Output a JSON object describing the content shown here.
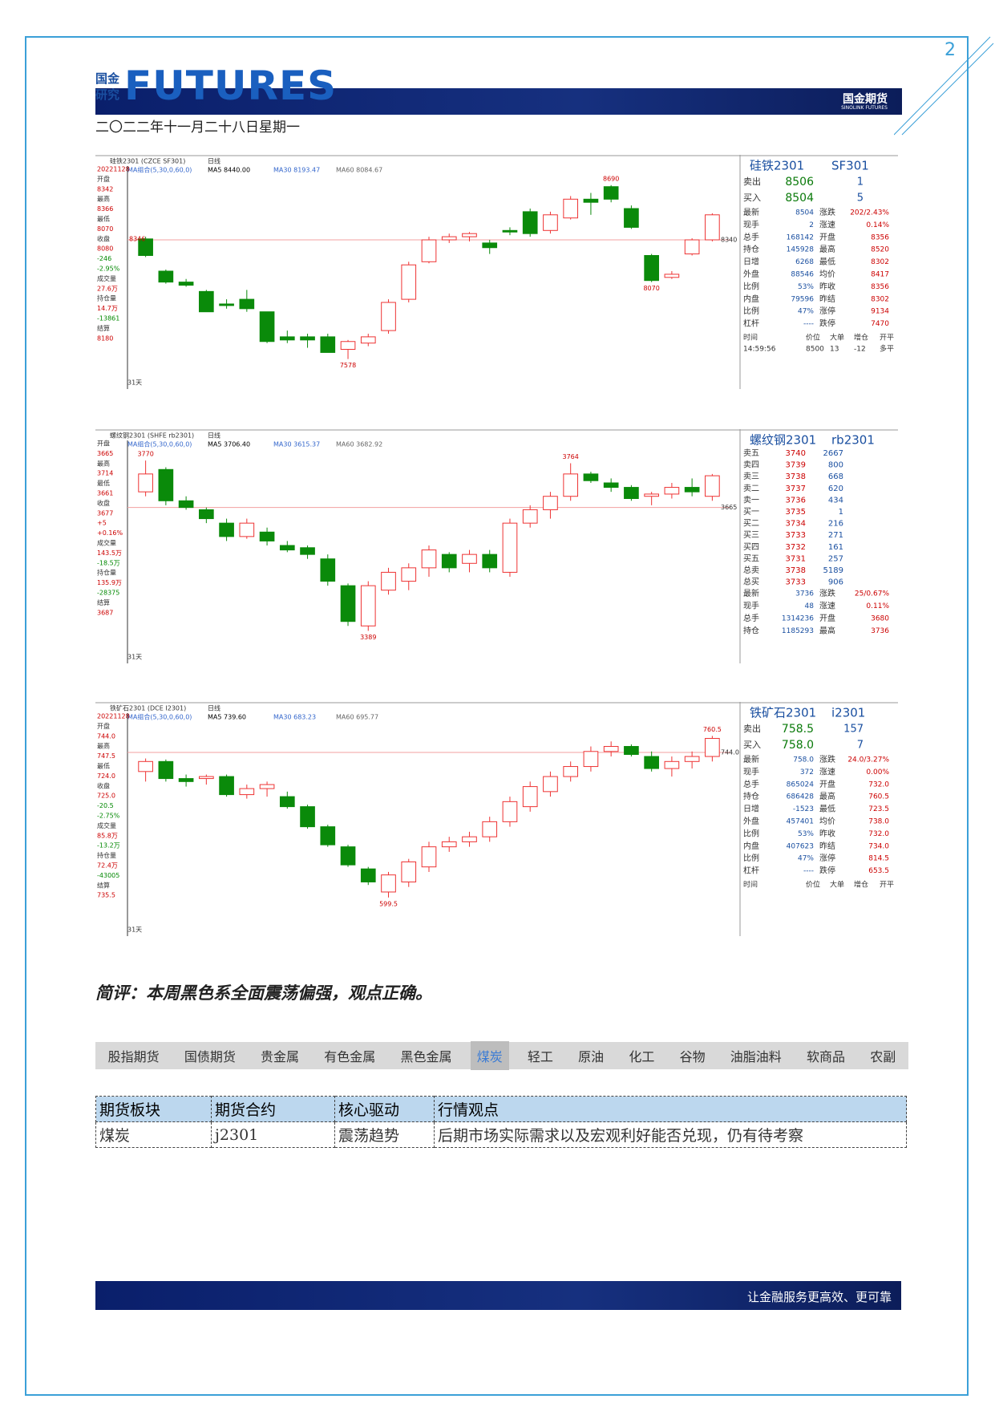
{
  "page_number": "2",
  "header": {
    "logo_top": "国金",
    "logo_bottom": "研究",
    "brand": "FUTURES",
    "company": "国金期货",
    "company_en": "SINOLINK FUTURES",
    "date": "二〇二二年十一月二十八日星期一"
  },
  "charts": [
    {
      "title": "硅铁2301 (CZCE SF301)",
      "period": "日线",
      "ma_legend": [
        "MA组合(5,30,0,60,0)",
        "MA5 8440.00",
        "MA30 8193.47",
        "MA60 8084.67"
      ],
      "left_column": [
        "20221128",
        "开盘",
        "8342",
        "最高",
        "8366",
        "最低",
        "8070",
        "收盘",
        "8080",
        "-246",
        "-2.95%",
        "成交量",
        "27.6万",
        "持仓量",
        "14.7万",
        "-13861",
        "结算",
        "8180"
      ],
      "days": "31天",
      "ylim": [
        7540,
        8740
      ],
      "candles": [
        [
          8346,
          8360,
          8230,
          8240
        ],
        [
          8140,
          8150,
          8060,
          8070
        ],
        [
          8070,
          8090,
          8040,
          8050
        ],
        [
          8010,
          8020,
          7880,
          7880
        ],
        [
          7930,
          7960,
          7900,
          7920
        ],
        [
          7960,
          8020,
          7880,
          7900
        ],
        [
          7880,
          7880,
          7680,
          7690
        ],
        [
          7720,
          7760,
          7680,
          7700
        ],
        [
          7720,
          7740,
          7650,
          7700
        ],
        [
          7720,
          7740,
          7620,
          7620
        ],
        [
          7640,
          7700,
          7578,
          7690
        ],
        [
          7680,
          7740,
          7660,
          7720
        ],
        [
          7760,
          7960,
          7740,
          7940
        ],
        [
          7960,
          8200,
          7940,
          8180
        ],
        [
          8200,
          8360,
          8190,
          8340
        ],
        [
          8340,
          8380,
          8320,
          8360
        ],
        [
          8360,
          8390,
          8330,
          8380
        ],
        [
          8320,
          8340,
          8250,
          8290
        ],
        [
          8400,
          8420,
          8370,
          8390
        ],
        [
          8520,
          8540,
          8360,
          8380
        ],
        [
          8400,
          8520,
          8380,
          8500
        ],
        [
          8480,
          8620,
          8470,
          8600
        ],
        [
          8600,
          8640,
          8500,
          8580
        ],
        [
          8680,
          8690,
          8580,
          8600
        ],
        [
          8540,
          8560,
          8410,
          8420
        ],
        [
          8240,
          8250,
          8070,
          8080
        ],
        [
          8100,
          8140,
          8090,
          8120
        ],
        [
          8250,
          8350,
          8240,
          8340
        ],
        [
          8340,
          8510,
          8330,
          8500
        ]
      ],
      "annotations": [
        8690,
        7578,
        8070,
        8346
      ],
      "ref": 8340,
      "panel": {
        "name": "硅铁2301",
        "code": "SF301",
        "quote": [
          [
            "卖出",
            "8506",
            "1"
          ],
          [
            "买入",
            "8504",
            "5"
          ]
        ],
        "rows": [
          [
            "最新",
            "8504",
            "涨跌",
            "202/2.43%"
          ],
          [
            "现手",
            "2",
            "涨速",
            "0.14%"
          ],
          [
            "总手",
            "168142",
            "开盘",
            "8356"
          ],
          [
            "持仓",
            "145928",
            "最高",
            "8520"
          ],
          [
            "日增",
            "6268",
            "最低",
            "8302"
          ],
          [
            "外盘",
            "88546",
            "均价",
            "8417"
          ],
          [
            "比例",
            "53%",
            "昨收",
            "8356"
          ],
          [
            "内盘",
            "79596",
            "昨结",
            "8302"
          ],
          [
            "比例",
            "47%",
            "涨停",
            "9134"
          ],
          [
            "杠杆",
            "----",
            "跌停",
            "7470"
          ]
        ],
        "trades": [
          [
            "时间",
            "价位",
            "大单",
            "增仓",
            "开平"
          ],
          [
            "14:59:56",
            "8500",
            "13",
            "-12",
            "多平"
          ]
        ]
      }
    },
    {
      "title": "螺纹钢2301 (SHFE rb2301)",
      "period": "日线",
      "ma_legend": [
        "MA组合(5,30,0,60,0)",
        "MA5 3706.40",
        "MA30 3615.37",
        "MA60 3682.92"
      ],
      "left_column": [
        "开盘",
        "3665",
        "最高",
        "3714",
        "最低",
        "3661",
        "收盘",
        "3677",
        "+5",
        "+0.16%",
        "成交量",
        "143.5万",
        "-18.5万",
        "持仓量",
        "135.9万",
        "-28375",
        "结算",
        "3687"
      ],
      "days": "31天",
      "ylim": [
        3370,
        3790
      ],
      "candles": [
        [
          3700,
          3770,
          3690,
          3740
        ],
        [
          3750,
          3755,
          3670,
          3680
        ],
        [
          3680,
          3690,
          3660,
          3665
        ],
        [
          3660,
          3665,
          3630,
          3640
        ],
        [
          3630,
          3640,
          3590,
          3600
        ],
        [
          3600,
          3640,
          3595,
          3630
        ],
        [
          3610,
          3620,
          3580,
          3590
        ],
        [
          3580,
          3590,
          3565,
          3570
        ],
        [
          3575,
          3580,
          3550,
          3560
        ],
        [
          3550,
          3560,
          3490,
          3500
        ],
        [
          3490,
          3495,
          3400,
          3410
        ],
        [
          3400,
          3500,
          3389,
          3490
        ],
        [
          3480,
          3530,
          3470,
          3520
        ],
        [
          3500,
          3540,
          3480,
          3530
        ],
        [
          3530,
          3580,
          3510,
          3570
        ],
        [
          3560,
          3565,
          3520,
          3530
        ],
        [
          3540,
          3570,
          3520,
          3560
        ],
        [
          3560,
          3570,
          3520,
          3530
        ],
        [
          3520,
          3640,
          3510,
          3630
        ],
        [
          3630,
          3670,
          3620,
          3660
        ],
        [
          3660,
          3700,
          3640,
          3690
        ],
        [
          3690,
          3764,
          3680,
          3740
        ],
        [
          3740,
          3745,
          3720,
          3725
        ],
        [
          3720,
          3730,
          3700,
          3710
        ],
        [
          3710,
          3715,
          3680,
          3685
        ],
        [
          3690,
          3700,
          3670,
          3695
        ],
        [
          3695,
          3720,
          3685,
          3710
        ],
        [
          3710,
          3730,
          3690,
          3700
        ],
        [
          3690,
          3740,
          3680,
          3736
        ]
      ],
      "annotations": [
        3770,
        3764,
        3389
      ],
      "ref": 3665,
      "panel": {
        "name": "螺纹钢2301",
        "code": "rb2301",
        "book": [
          [
            "卖五",
            "3740",
            "2667"
          ],
          [
            "卖四",
            "3739",
            "800"
          ],
          [
            "卖三",
            "3738",
            "668"
          ],
          [
            "卖二",
            "3737",
            "620"
          ],
          [
            "卖一",
            "3736",
            "434"
          ],
          [
            "买一",
            "3735",
            "1"
          ],
          [
            "买二",
            "3734",
            "216"
          ],
          [
            "买三",
            "3733",
            "271"
          ],
          [
            "买四",
            "3732",
            "161"
          ],
          [
            "买五",
            "3731",
            "257"
          ],
          [
            "总卖",
            "3738",
            "5189"
          ],
          [
            "总买",
            "3733",
            "906"
          ]
        ],
        "rows": [
          [
            "最新",
            "3736",
            "涨跌",
            "25/0.67%"
          ],
          [
            "现手",
            "48",
            "涨速",
            "0.11%"
          ],
          [
            "总手",
            "1314236",
            "开盘",
            "3680"
          ],
          [
            "持仓",
            "1185293",
            "最高",
            "3736"
          ]
        ]
      }
    },
    {
      "title": "铁矿石2301 (DCE I2301)",
      "period": "日线",
      "ma_legend": [
        "MA组合(5,30,0,60,0)",
        "MA5 739.60",
        "MA30 683.23",
        "MA60 695.77"
      ],
      "left_column": [
        "20221128",
        "开盘",
        "744.0",
        "最高",
        "747.5",
        "最低",
        "724.0",
        "收盘",
        "725.0",
        "-20.5",
        "-2.75%",
        "成交量",
        "85.8万",
        "-13.2万",
        "持仓量",
        "72.4万",
        "-43005",
        "结算",
        "735.5"
      ],
      "days": "31天",
      "ylim": [
        585,
        772
      ],
      "candles": [
        [
          725,
          738,
          715,
          735
        ],
        [
          735,
          737,
          715,
          718
        ],
        [
          718,
          722,
          710,
          715
        ],
        [
          718,
          722,
          712,
          720
        ],
        [
          720,
          722,
          700,
          702
        ],
        [
          702,
          712,
          698,
          708
        ],
        [
          708,
          715,
          700,
          712
        ],
        [
          700,
          705,
          688,
          690
        ],
        [
          690,
          692,
          668,
          670
        ],
        [
          670,
          672,
          650,
          652
        ],
        [
          650,
          652,
          630,
          632
        ],
        [
          628,
          630,
          612,
          615
        ],
        [
          605,
          625,
          599.5,
          622
        ],
        [
          615,
          638,
          610,
          635
        ],
        [
          630,
          655,
          625,
          650
        ],
        [
          650,
          660,
          645,
          655
        ],
        [
          655,
          665,
          650,
          660
        ],
        [
          660,
          680,
          655,
          675
        ],
        [
          675,
          700,
          670,
          695
        ],
        [
          690,
          715,
          685,
          710
        ],
        [
          705,
          725,
          700,
          720
        ],
        [
          720,
          735,
          715,
          730
        ],
        [
          730,
          750,
          725,
          745
        ],
        [
          745,
          755,
          740,
          750
        ],
        [
          750,
          752,
          740,
          742
        ],
        [
          740,
          745,
          725,
          728
        ],
        [
          728,
          740,
          720,
          735
        ],
        [
          735,
          745,
          728,
          740
        ],
        [
          740,
          760.5,
          735,
          758
        ]
      ],
      "annotations": [
        760.5,
        599.5
      ],
      "ref": {
        "value": 744,
        "label": "744.0"
      },
      "panel": {
        "name": "铁矿石2301",
        "code": "i2301",
        "quote": [
          [
            "卖出",
            "758.5",
            "157"
          ],
          [
            "买入",
            "758.0",
            "7"
          ]
        ],
        "rows": [
          [
            "最新",
            "758.0",
            "涨跌",
            "24.0/3.27%"
          ],
          [
            "现手",
            "372",
            "涨速",
            "0.00%"
          ],
          [
            "总手",
            "865024",
            "开盘",
            "732.0"
          ],
          [
            "持仓",
            "686428",
            "最高",
            "760.5"
          ],
          [
            "日增",
            "-1523",
            "最低",
            "723.5"
          ],
          [
            "外盘",
            "457401",
            "均价",
            "738.0"
          ],
          [
            "比例",
            "53%",
            "昨收",
            "732.0"
          ],
          [
            "内盘",
            "407623",
            "昨结",
            "734.0"
          ],
          [
            "比例",
            "47%",
            "涨停",
            "814.5"
          ],
          [
            "杠杆",
            "----",
            "跌停",
            "653.5"
          ]
        ],
        "trades": [
          [
            "时间",
            "价位",
            "大单",
            "增仓",
            "开平"
          ]
        ]
      }
    }
  ],
  "comment": "简评：本周黑色系全面震荡偏强，观点正确。",
  "tabs": [
    "股指期货",
    "国债期货",
    "贵金属",
    "有色金属",
    "黑色金属",
    "煤炭",
    "轻工",
    "原油",
    "化工",
    "谷物",
    "油脂油料",
    "软商品",
    "农副"
  ],
  "active_tab": 5,
  "table": {
    "header": [
      "期货板块",
      "期货合约",
      "核心驱动",
      "行情观点"
    ],
    "rows": [
      [
        "煤炭",
        "j2301",
        "震荡趋势",
        "后期市场实际需求以及宏观利好能否兑现，仍有待考察"
      ]
    ]
  },
  "footer": "让金融服务更高效、更可靠"
}
